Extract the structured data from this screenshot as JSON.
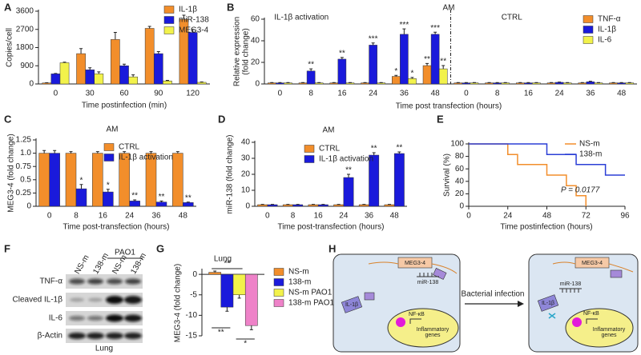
{
  "chart_data": [
    {
      "type": "bar",
      "label": "A",
      "ylabel": "Copies/cell",
      "xlabel": "Time postinfection (min)",
      "categories": [
        0,
        30,
        60,
        90,
        120
      ],
      "series": [
        {
          "name": "IL-1β",
          "color": "#f28e2b",
          "values": [
            50,
            1500,
            2200,
            2750,
            3200
          ],
          "errors": [
            10,
            250,
            350,
            100,
            200
          ]
        },
        {
          "name": "miR-138",
          "color": "#1a1adb",
          "values": [
            500,
            700,
            900,
            1500,
            2550
          ],
          "errors": [
            20,
            100,
            80,
            100,
            150
          ]
        },
        {
          "name": "MEG3-4",
          "color": "#f2f24b",
          "values": [
            1050,
            500,
            350,
            150,
            80
          ],
          "errors": [
            30,
            100,
            100,
            30,
            20
          ]
        }
      ],
      "ylim": [
        0,
        3600
      ],
      "yticks": [
        0,
        900,
        1800,
        2700,
        3600
      ]
    },
    {
      "type": "bar",
      "label": "B",
      "title": "AM",
      "ylabel": [
        "Relative expression",
        "(fold change)"
      ],
      "xlabel": "Time post transfection (hours)",
      "group_labels": [
        "IL-1β activation",
        "CTRL"
      ],
      "categories": [
        0,
        8,
        16,
        24,
        36,
        48,
        0,
        8,
        16,
        24,
        36,
        48
      ],
      "series": [
        {
          "name": "TNF-α",
          "color": "#f28e2b",
          "values": [
            1,
            1,
            1,
            1,
            7,
            17,
            1,
            1,
            1,
            1,
            1,
            1
          ],
          "errors": [
            0.3,
            0.3,
            0.3,
            0.3,
            1,
            2,
            0.3,
            0.3,
            0.3,
            0.3,
            0.3,
            0.3
          ],
          "significance": [
            null,
            null,
            null,
            null,
            "*",
            "**",
            null,
            null,
            null,
            null,
            null,
            null
          ]
        },
        {
          "name": "IL-1β",
          "color": "#1a1adb",
          "values": [
            1,
            12,
            23,
            36,
            46,
            46,
            1,
            1,
            1,
            1.5,
            2,
            1
          ],
          "errors": [
            0.3,
            2,
            1.5,
            2,
            5,
            2,
            0.3,
            0.3,
            0.3,
            0.3,
            0.5,
            0.3
          ],
          "significance": [
            null,
            "**",
            "**",
            "***",
            "***",
            "***",
            null,
            null,
            null,
            null,
            null,
            null
          ]
        },
        {
          "name": "IL-6",
          "color": "#f2f24b",
          "values": [
            1,
            1,
            1,
            1,
            5,
            14,
            1,
            1,
            1,
            1,
            1,
            1
          ],
          "errors": [
            0.3,
            0.3,
            0.3,
            0.3,
            1,
            3,
            0.3,
            0.3,
            0.3,
            0.3,
            0.3,
            0.3
          ],
          "significance": [
            null,
            null,
            null,
            null,
            "*",
            "**",
            null,
            null,
            null,
            null,
            null,
            null
          ]
        }
      ],
      "ylim": [
        0,
        60
      ],
      "yticks": [
        0,
        20,
        40,
        60
      ]
    },
    {
      "type": "bar",
      "label": "C",
      "title": "AM",
      "ylabel": "MEG3-4 (fold change)",
      "xlabel": "Time post-transfection (hours)",
      "categories": [
        0,
        8,
        16,
        24,
        36,
        48
      ],
      "series": [
        {
          "name": "CTRL",
          "color": "#f28e2b",
          "values": [
            1,
            1,
            1,
            1,
            1,
            1
          ],
          "errors": [
            0.05,
            0.03,
            0.03,
            0.03,
            0.03,
            0.03
          ]
        },
        {
          "name": "IL-1β activation",
          "color": "#1a1adb",
          "values": [
            1,
            0.33,
            0.27,
            0.1,
            0.08,
            0.07
          ],
          "errors": [
            0.05,
            0.08,
            0.05,
            0.02,
            0.02,
            0.01
          ],
          "significance": [
            null,
            "*",
            "*",
            "**",
            "**",
            "**"
          ]
        }
      ],
      "ylim": [
        0,
        1.25
      ],
      "yticks": [
        0,
        0.25,
        0.5,
        0.75,
        {
          "value": 1,
          "label": "1.0"
        },
        1.25
      ]
    },
    {
      "type": "bar",
      "label": "D",
      "title": "AM",
      "ylabel": "miR-138 (fold change)",
      "xlabel": "Time post-transfection (hours)",
      "categories": [
        0,
        8,
        16,
        24,
        36,
        48
      ],
      "series": [
        {
          "name": "CTRL",
          "color": "#f28e2b",
          "values": [
            1,
            1,
            1,
            1,
            1,
            1
          ],
          "errors": [
            0.2,
            0.2,
            0.2,
            0.2,
            0.2,
            0.2
          ]
        },
        {
          "name": "IL-1β activation",
          "color": "#1a1adb",
          "values": [
            1,
            1,
            1,
            18,
            32,
            33
          ],
          "errors": [
            0.2,
            0.2,
            0.2,
            2,
            1.5,
            1
          ],
          "significance": [
            null,
            null,
            null,
            "**",
            "**",
            "**"
          ]
        }
      ],
      "ylim": [
        0,
        40
      ],
      "yticks": [
        0,
        10,
        20,
        30,
        40
      ]
    },
    {
      "type": "line",
      "label": "E",
      "ylabel": "Survival (%)",
      "xlabel": "Time postinfection (hours)",
      "annotation": "P = 0.0177",
      "series": [
        {
          "name": "NS-m",
          "color": "#f28e2b",
          "x": [
            0,
            24,
            24,
            30,
            30,
            48,
            48,
            60,
            60,
            66,
            66,
            72,
            72
          ],
          "y": [
            100,
            100,
            83,
            83,
            67,
            67,
            50,
            50,
            33,
            33,
            17,
            17,
            0
          ]
        },
        {
          "name": "138-m",
          "color": "#2b3fd6",
          "x": [
            0,
            48,
            48,
            66,
            66,
            84,
            84,
            96
          ],
          "y": [
            100,
            100,
            83,
            83,
            67,
            67,
            50,
            50
          ]
        }
      ],
      "xlim": [
        0,
        96
      ],
      "xticks": [
        0,
        24,
        48,
        72,
        96
      ],
      "ylim": [
        0,
        100
      ],
      "yticks": [
        0,
        20,
        40,
        60,
        80,
        100
      ]
    },
    {
      "type": "bar",
      "label": "G",
      "title": "Lung",
      "ylabel": "MEG3-4 (fold change)",
      "categories": [
        null
      ],
      "series": [
        {
          "name": "NS-m",
          "color": "#f28e2b",
          "values": [
            0.5
          ],
          "errors": [
            0.3
          ]
        },
        {
          "name": "138-m",
          "color": "#1a1adb",
          "values": [
            -8
          ],
          "errors": [
            1
          ]
        },
        {
          "name": "NS-m PAO1",
          "color": "#f2f24b",
          "values": [
            -5
          ],
          "errors": [
            0.8
          ]
        },
        {
          "name": "138-m PAO1",
          "color": "#ee82c8",
          "values": [
            -12.5
          ],
          "errors": [
            1
          ]
        }
      ],
      "brackets": [
        "**",
        "**",
        "*"
      ],
      "ylim": [
        -15,
        1
      ],
      "yticks": [
        -15,
        -10,
        -5,
        0
      ]
    }
  ],
  "blot": {
    "label": "F",
    "lanes": [
      "NS-m",
      "138-m",
      "NS-m",
      "138-m"
    ],
    "treatment": "PAO1",
    "rows": [
      "TNF-α",
      "Cleaved IL-1β",
      "IL-6",
      "β-Actin"
    ],
    "tissue": "Lung"
  },
  "diagram": {
    "label": "H",
    "arrow": "Bacterial infection",
    "before": {
      "lncrna": "MEG3-4",
      "mirna": "miR-138",
      "receptor": "IL-1β",
      "factor": "NF-κB",
      "genes": [
        "Inflammatory",
        "genes"
      ]
    },
    "after": {
      "lncrna": "MEG3-4",
      "mirna": "miR-138",
      "receptor": "IL-1β",
      "factor": "NF-κB",
      "genes": [
        "Inflammatory",
        "genes"
      ]
    }
  }
}
